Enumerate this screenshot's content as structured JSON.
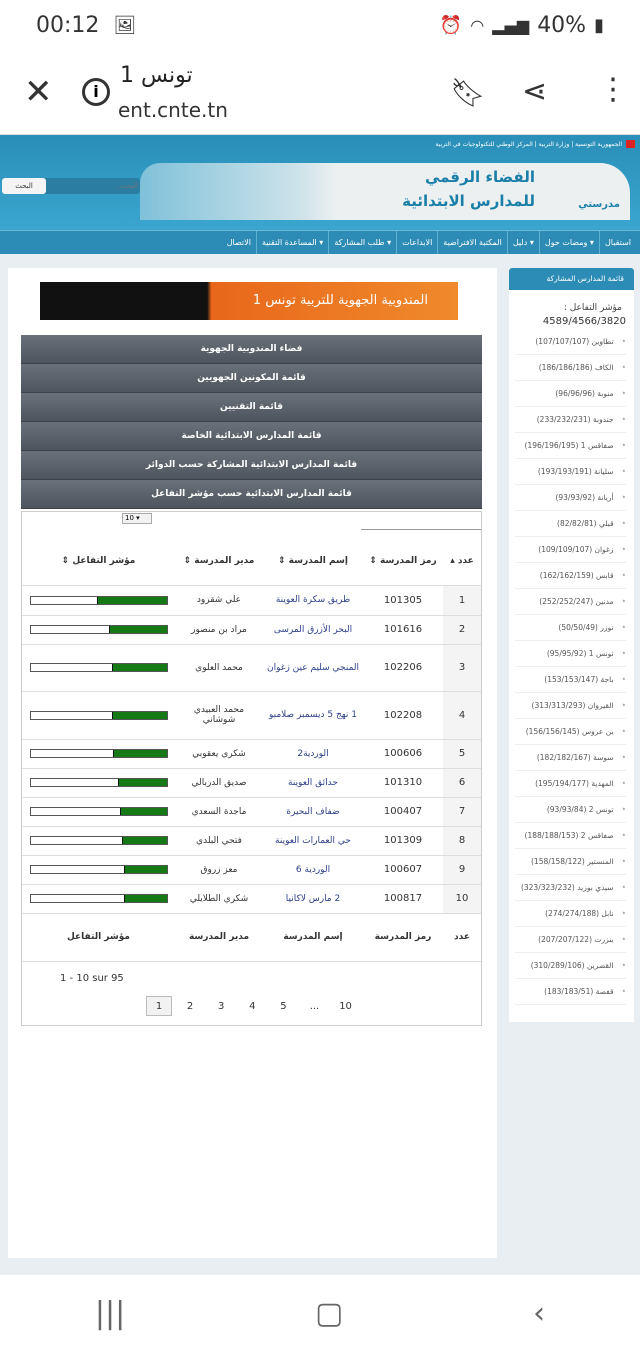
{
  "status_bar": {
    "time": "00:12",
    "battery": "40%",
    "icons": [
      "image-icon",
      "alarm-icon",
      "wifi-icon",
      "signal-icon",
      "battery-icon"
    ]
  },
  "browser": {
    "title": "تونس 1",
    "url": "ent.cnte.tn"
  },
  "site": {
    "top_links": "الجمهورية التونسية | وزارة التربية | المركز الوطني للتكنولوجيات في التربية",
    "banner_title_1": "الفضاء الرقمي",
    "banner_title_2": "للمدارس الابتدائية",
    "logo_text": "مدرستي",
    "search_placeholder": "البحث...",
    "search_button": "البحث",
    "nav": [
      "استقبال",
      "ومضات حول ▾",
      "دليل ▾",
      "المكتبة الافتراضية",
      "الابداعات",
      "طلب المشاركة ▾",
      "المساعدة التقنية ▾",
      "الاتصال"
    ]
  },
  "main": {
    "region_banner": "المندوبية الجهوية للتربية تونس 1",
    "menu": [
      "فضاء المندوبية الجهوية",
      "قائمة المكونين الجهويين",
      "قائمة التقنيين",
      "قائمة المدارس الابتدائية الخاصة",
      "قائمة المدارس الابتدائية المشاركة حسب الدوائر",
      "قائمة المدارس الابتدائية حسب مؤشر التفاعل"
    ],
    "page_size": "10",
    "columns": [
      "عدد",
      "رمز المدرسة",
      "إسم المدرسة",
      "مدير المدرسة",
      "مؤشر التفاعل"
    ],
    "rows": [
      {
        "n": "1",
        "code": "101305",
        "school": "طريق سكرة العوينة",
        "director": "علي شقرود",
        "index": 0.51
      },
      {
        "n": "2",
        "code": "101616",
        "school": "البحر الأزرق المرسى",
        "director": "مراد بن منصور",
        "index": 0.42
      },
      {
        "n": "3",
        "code": "102206",
        "school": "المنجي سليم عين زغوان",
        "director": "محمد العلوي",
        "index": 0.4
      },
      {
        "n": "4",
        "code": "102208",
        "school": "1 نهج 5 ديسمبر صلامبو",
        "director": "محمد العبيدي شوشاني",
        "index": 0.4
      },
      {
        "n": "5",
        "code": "100606",
        "school": "الوردية2",
        "director": "شكري يعقوبي",
        "index": 0.39
      },
      {
        "n": "6",
        "code": "101310",
        "school": "حدائق العوينة",
        "director": "صديق الدربالي",
        "index": 0.36
      },
      {
        "n": "7",
        "code": "100407",
        "school": "ضفاف البحيرة",
        "director": "ماجدة السعدي",
        "index": 0.34
      },
      {
        "n": "8",
        "code": "101309",
        "school": "حي العمارات العوينة",
        "director": "فتحي البلدي",
        "index": 0.33
      },
      {
        "n": "9",
        "code": "100607",
        "school": "الوردية 6",
        "director": "معز زروق",
        "index": 0.31
      },
      {
        "n": "10",
        "code": "100817",
        "school": "2 مارس لاكانيا",
        "director": "شكري الطلايلي",
        "index": 0.31
      }
    ],
    "info": "1 - 10 sur 95",
    "pages": [
      "1",
      "2",
      "3",
      "4",
      "5",
      "...",
      "10"
    ]
  },
  "sidebar": {
    "title": "قائمة المدارس المشاركة",
    "index_label": "مؤشر التفاعل :",
    "index_value": "4589/4566/3820",
    "items": [
      "تطاوين (107/107/107)",
      "الكاف (186/186/186)",
      "منوبة (96/96/96)",
      "جندوبة (233/232/231)",
      "صفاقس 1 (196/196/195)",
      "سليانة (193/193/191)",
      "أريانة (93/93/92)",
      "قبلي (82/82/81)",
      "زغوان (109/109/107)",
      "قابس (162/162/159)",
      "مدنين (252/252/247)",
      "توزر (50/50/49)",
      "تونس 1 (95/95/92)",
      "باجة (153/153/147)",
      "القيروان (313/313/293)",
      "بن عروس (156/156/145)",
      "سوسة (182/182/167)",
      "المهدية (195/194/177)",
      "تونس 2 (93/93/84)",
      "صفاقس 2 (188/188/153)",
      "المنستير (158/158/122)",
      "سيدي بوزيد (323/323/232)",
      "نابل (274/274/188)",
      "بنزرت (207/207/122)",
      "القصرين (310/289/106)",
      "قفصة (183/183/51)"
    ]
  },
  "colors": {
    "brand": "#2d8cb5",
    "bar_fill": "#157a15",
    "menu": "#5a6069"
  }
}
